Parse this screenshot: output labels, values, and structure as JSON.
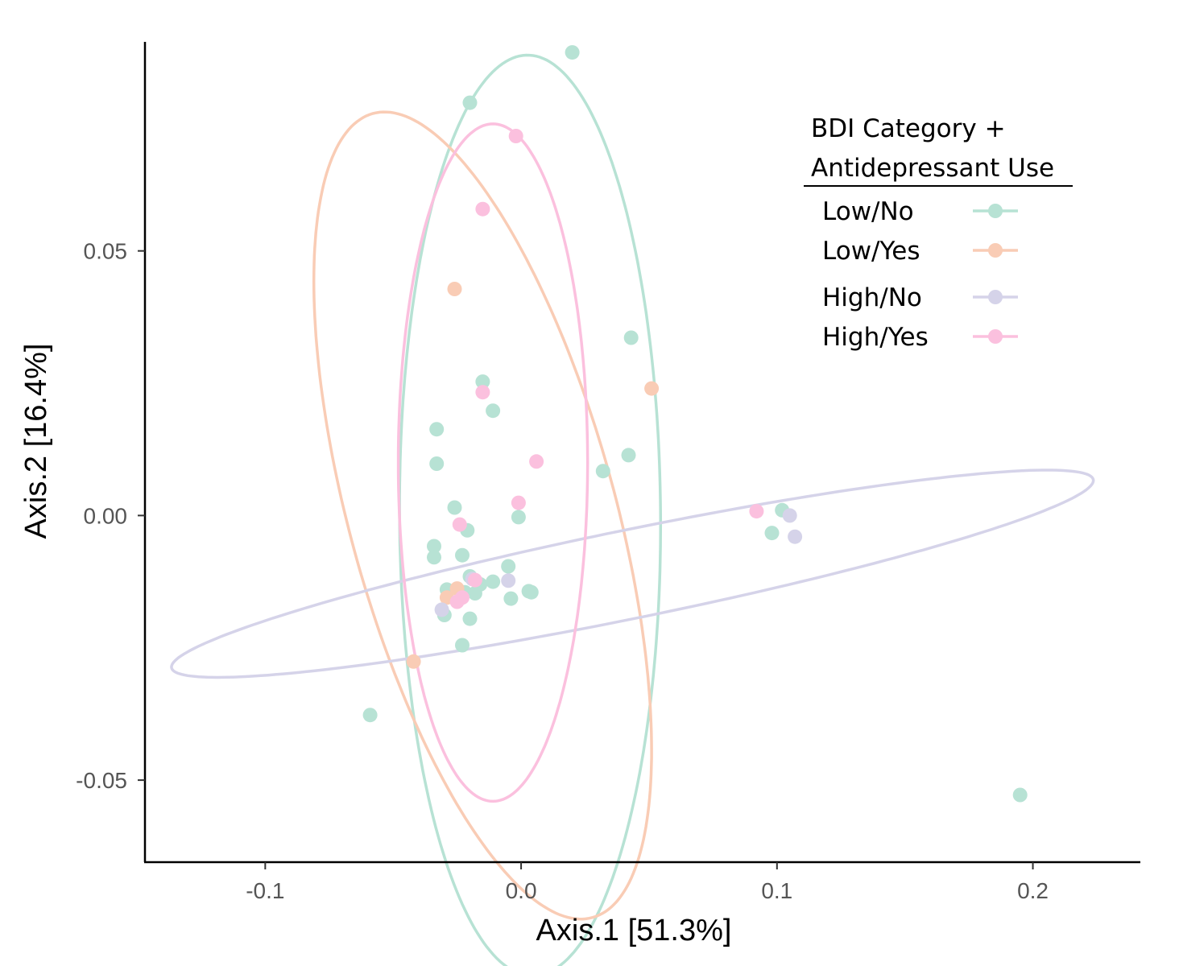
{
  "chart_data": {
    "type": "scatter",
    "xlabel": "Axis.1   [51.3%]",
    "ylabel": "Axis.2   [16.4%]",
    "xlim": [
      -0.147,
      0.242
    ],
    "ylim": [
      -0.0655,
      0.0895
    ],
    "x_ticks": [
      {
        "value": -0.1,
        "label": "-0.1"
      },
      {
        "value": 0.0,
        "label": "0.0"
      },
      {
        "value": 0.1,
        "label": "0.1"
      },
      {
        "value": 0.2,
        "label": "0.2"
      }
    ],
    "y_ticks": [
      {
        "value": 0.05,
        "label": "0.05"
      },
      {
        "value": 0.0,
        "label": "0.00"
      },
      {
        "value": -0.05,
        "label": "-0.05"
      }
    ],
    "grid": false,
    "legend": {
      "title_line1": "BDI Category +",
      "title_line2": "Antidepressant Use",
      "position": "top-right"
    },
    "series": [
      {
        "name": "Low/No",
        "color": "#b7e2d4",
        "points": [
          [
            0.02,
            0.0875
          ],
          [
            -0.02,
            0.078
          ],
          [
            -0.015,
            0.0253
          ],
          [
            -0.011,
            0.0198
          ],
          [
            -0.033,
            0.0163
          ],
          [
            -0.033,
            0.0098
          ],
          [
            0.043,
            0.0336
          ],
          [
            0.042,
            0.0114
          ],
          [
            0.032,
            0.0084
          ],
          [
            -0.026,
            0.0015
          ],
          [
            -0.021,
            -0.0028
          ],
          [
            -0.001,
            -0.0003
          ],
          [
            -0.034,
            -0.0058
          ],
          [
            -0.034,
            -0.0079
          ],
          [
            -0.023,
            -0.0075
          ],
          [
            -0.005,
            -0.0096
          ],
          [
            -0.02,
            -0.0115
          ],
          [
            -0.016,
            -0.013
          ],
          [
            -0.011,
            -0.0125
          ],
          [
            -0.022,
            -0.0145
          ],
          [
            -0.018,
            -0.0147
          ],
          [
            -0.029,
            -0.014
          ],
          [
            -0.004,
            -0.0157
          ],
          [
            0.004,
            -0.0145
          ],
          [
            0.003,
            -0.0143
          ],
          [
            -0.03,
            -0.0188
          ],
          [
            -0.02,
            -0.0195
          ],
          [
            -0.023,
            -0.0245
          ],
          [
            -0.059,
            -0.0377
          ],
          [
            0.098,
            -0.0033
          ],
          [
            0.102,
            0.001
          ],
          [
            0.195,
            -0.0528
          ]
        ]
      },
      {
        "name": "Low/Yes",
        "color": "#f9ccb5",
        "points": [
          [
            -0.026,
            0.0428
          ],
          [
            0.051,
            0.024
          ],
          [
            -0.025,
            -0.0138
          ],
          [
            -0.029,
            -0.0155
          ],
          [
            -0.042,
            -0.0276
          ]
        ]
      },
      {
        "name": "High/No",
        "color": "#d5d3e9",
        "points": [
          [
            0.105,
            0.0
          ],
          [
            0.107,
            -0.004
          ],
          [
            -0.005,
            -0.0123
          ],
          [
            -0.019,
            -0.012
          ],
          [
            -0.031,
            -0.0178
          ]
        ]
      },
      {
        "name": "High/Yes",
        "color": "#fbc0de",
        "points": [
          [
            -0.002,
            0.0717
          ],
          [
            -0.015,
            0.0579
          ],
          [
            -0.015,
            0.0233
          ],
          [
            0.006,
            0.0102
          ],
          [
            -0.001,
            0.0024
          ],
          [
            -0.024,
            -0.0017
          ],
          [
            -0.018,
            -0.0122
          ],
          [
            -0.023,
            -0.0155
          ],
          [
            -0.025,
            -0.0163
          ],
          [
            0.092,
            0.0008
          ]
        ]
      }
    ],
    "ellipses": [
      {
        "series": "Low/No",
        "color": "#b7e2d4",
        "cx": 0.0035,
        "cy": 0.0,
        "rx": 0.087,
        "ry": 0.051,
        "angle_deg": -89.0
      },
      {
        "series": "Low/Yes",
        "color": "#f9ccb5",
        "cx": -0.015,
        "cy": 0.0,
        "rx": 0.09,
        "ry": 0.0455,
        "angle_deg": -52.0
      },
      {
        "series": "High/No",
        "color": "#d5d3e9",
        "cx": 0.0435,
        "cy": -0.011,
        "rx": 0.181,
        "ry": 0.0085,
        "angle_deg": 5.6
      },
      {
        "series": "High/Yes",
        "color": "#fbc0de",
        "cx": -0.011,
        "cy": 0.01,
        "rx": 0.064,
        "ry": 0.037,
        "angle_deg": -90.0
      }
    ]
  }
}
